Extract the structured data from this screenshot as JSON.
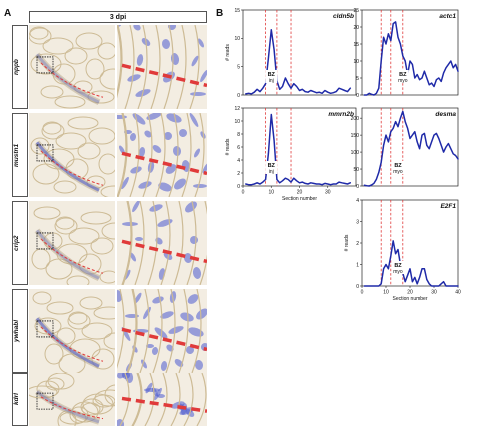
{
  "panel_a": {
    "letter": "A",
    "header": "3 dpi",
    "rows": [
      {
        "gene": "nppb"
      },
      {
        "gene": "mustn1"
      },
      {
        "gene": "crip2"
      },
      {
        "gene": "ywhabl"
      },
      {
        "gene": "kdrl"
      }
    ]
  },
  "panel_b": {
    "letter": "B"
  },
  "chart_data": [
    {
      "type": "line",
      "title": "cldn5b",
      "ylabel": "# reads",
      "xlabel": "",
      "x": [
        1,
        2,
        3,
        4,
        5,
        6,
        7,
        8,
        9,
        10,
        11,
        12,
        13,
        14,
        15,
        16,
        17,
        18,
        19,
        20,
        21,
        22,
        23,
        24,
        25,
        26,
        27,
        28,
        29,
        30,
        31,
        32,
        33,
        34,
        35,
        36,
        37,
        38
      ],
      "y": [
        0.2,
        0.3,
        0.2,
        0.5,
        1.0,
        0.6,
        1.2,
        2.0,
        6.5,
        11.5,
        8.0,
        2.5,
        1.0,
        1.5,
        3.0,
        2.0,
        1.2,
        2.0,
        1.5,
        0.8,
        1.0,
        0.6,
        0.5,
        0.8,
        0.6,
        0.4,
        0.5,
        0.3,
        0.8,
        0.5,
        0.3,
        0.4,
        0.6,
        1.2,
        1.0,
        0.8,
        0.6,
        1.2
      ],
      "ylim": [
        0,
        15
      ],
      "yticks": [
        "0",
        "5",
        "10",
        "15"
      ],
      "xlim": [
        0,
        40
      ],
      "xticks": [],
      "vlines": [
        8,
        12,
        17
      ],
      "annotation": [
        "BZ",
        "inj"
      ],
      "annotation_x": 10
    },
    {
      "type": "line",
      "title": "actc1",
      "ylabel": "",
      "xlabel": "",
      "x": [
        1,
        2,
        3,
        4,
        5,
        6,
        7,
        8,
        9,
        10,
        11,
        12,
        13,
        14,
        15,
        16,
        17,
        18,
        19,
        20,
        21,
        22,
        23,
        24,
        25,
        26,
        27,
        28,
        29,
        30,
        31,
        32,
        33,
        34,
        35,
        36,
        37,
        38,
        39,
        40
      ],
      "y": [
        0,
        0,
        0.5,
        0.2,
        0,
        0.5,
        2.0,
        10.0,
        17.0,
        15.0,
        18.0,
        16.0,
        21.0,
        21.5,
        17.0,
        15.0,
        11.5,
        10.0,
        6.0,
        10.0,
        9.0,
        5.0,
        6.0,
        4.5,
        5.0,
        7.0,
        5.0,
        3.0,
        3.5,
        2.5,
        4.5,
        5.0,
        4.0,
        6.5,
        8.0,
        9.0,
        10.0,
        8.0,
        9.0,
        7.0
      ],
      "ylim": [
        0,
        25
      ],
      "yticks": [
        "0",
        "5",
        "10",
        "15",
        "20",
        "25"
      ],
      "xlim": [
        0,
        40
      ],
      "xticks": [],
      "vlines": [
        8,
        12,
        17
      ],
      "annotation": [
        "BZ",
        "myo"
      ],
      "annotation_x": 17
    },
    {
      "type": "line",
      "title": "mmrn2b",
      "ylabel": "# reads",
      "xlabel": "Section number",
      "x": [
        1,
        2,
        3,
        4,
        5,
        6,
        7,
        8,
        9,
        10,
        11,
        12,
        13,
        14,
        15,
        16,
        17,
        18,
        19,
        20,
        21,
        22,
        23,
        24,
        25,
        26,
        27,
        28,
        29,
        30,
        31,
        32,
        33,
        34,
        35,
        36,
        37,
        38
      ],
      "y": [
        0.3,
        0.2,
        0.2,
        0.3,
        0.5,
        0.3,
        0.6,
        1.0,
        5.0,
        11.0,
        7.0,
        1.0,
        0.5,
        0.8,
        1.2,
        1.0,
        0.6,
        1.2,
        0.8,
        0.5,
        0.6,
        0.4,
        0.3,
        0.5,
        0.4,
        0.3,
        0.3,
        0.2,
        0.4,
        0.3,
        0.2,
        0.3,
        0.3,
        0.6,
        0.5,
        0.4,
        0.3,
        0.5
      ],
      "ylim": [
        0,
        12
      ],
      "yticks": [
        "0",
        "2",
        "4",
        "6",
        "8",
        "10",
        "12"
      ],
      "xlim": [
        0,
        40
      ],
      "xticks": [
        "0",
        "10",
        "20",
        "30"
      ],
      "vlines": [
        8,
        12,
        17
      ],
      "annotation": [
        "BZ",
        "inj"
      ],
      "annotation_x": 10
    },
    {
      "type": "line",
      "title": "desma",
      "ylabel": "",
      "xlabel": "",
      "x": [
        1,
        2,
        3,
        4,
        5,
        6,
        7,
        8,
        9,
        10,
        11,
        12,
        13,
        14,
        15,
        16,
        17,
        18,
        19,
        20,
        21,
        22,
        23,
        24,
        25,
        26,
        27,
        28,
        29,
        30,
        31,
        32,
        33,
        34,
        35,
        36,
        37,
        38,
        39,
        40
      ],
      "y": [
        2,
        1,
        0,
        3,
        8,
        20,
        40,
        70,
        120,
        150,
        130,
        160,
        170,
        190,
        175,
        200,
        220,
        190,
        170,
        140,
        150,
        160,
        130,
        110,
        150,
        155,
        120,
        110,
        130,
        150,
        155,
        140,
        120,
        100,
        115,
        125,
        110,
        95,
        90,
        80
      ],
      "ylim": [
        0,
        230
      ],
      "yticks": [
        "0",
        "50",
        "100",
        "150",
        "200"
      ],
      "xlim": [
        0,
        40
      ],
      "xticks": [],
      "vlines": [
        8,
        12,
        17
      ],
      "annotation": [
        "BZ",
        "myo"
      ],
      "annotation_x": 15
    },
    {
      "type": "line",
      "title": "E2F1",
      "ylabel": "# reads",
      "xlabel": "Section number",
      "x": [
        1,
        2,
        3,
        4,
        5,
        6,
        7,
        8,
        9,
        10,
        11,
        12,
        13,
        14,
        15,
        16,
        17,
        18,
        19,
        20,
        21,
        22,
        23,
        24,
        25,
        26,
        27,
        28,
        29,
        30,
        31,
        32,
        33,
        34,
        35,
        36,
        37,
        38,
        39,
        40
      ],
      "y": [
        0,
        0,
        0,
        0,
        0,
        0,
        0,
        0.1,
        0.8,
        1.0,
        0.8,
        1.4,
        2.1,
        1.5,
        1.7,
        1.0,
        0.6,
        0.2,
        0.5,
        0.8,
        0.2,
        0.4,
        0.1,
        0.4,
        0.8,
        0.8,
        0.3,
        0.1,
        0,
        0,
        0,
        0,
        0.1,
        0.2,
        0,
        0,
        0,
        0,
        0,
        0
      ],
      "ylim": [
        0,
        4
      ],
      "yticks": [
        "0",
        "1",
        "2",
        "3",
        "4"
      ],
      "xlim": [
        0,
        40
      ],
      "xticks": [
        "0",
        "10",
        "20",
        "30",
        "40"
      ],
      "vlines": [
        8,
        12,
        17
      ],
      "annotation": [
        "BZ",
        "myo"
      ],
      "annotation_x": 15
    }
  ],
  "colors": {
    "line": "#1f2aa8",
    "dashed": "#e03a3a",
    "stain": "#4a5ad0",
    "tissue": "#e9dcc0"
  }
}
